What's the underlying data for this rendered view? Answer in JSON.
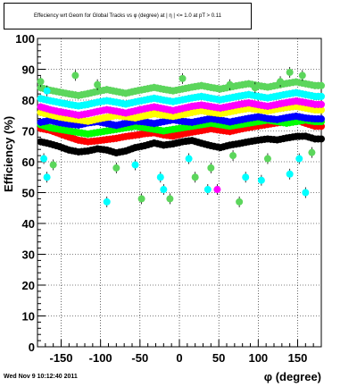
{
  "title": "Effeciency wrt Geom for Global Tracks vs φ (degree) at | η | <= 1.0 at pT > 0.11",
  "timestamp": "Wed Nov  9 10:12:40 2011",
  "chart_data": {
    "type": "scatter",
    "title": "Effeciency wrt Geom for Global Tracks vs φ (degree) at | η | <= 1.0 at pT > 0.11",
    "xlabel": "φ (degree)",
    "ylabel": "Efficiency (%)",
    "xlim": [
      -180,
      180
    ],
    "ylim": [
      0,
      100
    ],
    "xticks": [
      -150,
      -100,
      -50,
      0,
      50,
      100,
      150
    ],
    "yticks": [
      0,
      10,
      20,
      30,
      40,
      50,
      60,
      70,
      80,
      90,
      100
    ],
    "grid": true,
    "legend": "none",
    "x": [
      -176,
      -164,
      -152,
      -140,
      -128,
      -116,
      -104,
      -92,
      -80,
      -68,
      -56,
      -44,
      -32,
      -20,
      -8,
      4,
      16,
      28,
      40,
      52,
      64,
      76,
      88,
      100,
      112,
      124,
      136,
      148,
      160,
      172
    ],
    "series": [
      {
        "color": "#000000",
        "values": [
          66.5,
          65.8,
          64.9,
          63.8,
          63.2,
          63.5,
          64.2,
          63.8,
          62.9,
          63.5,
          64.6,
          65.2,
          66.1,
          65.4,
          65.8,
          66.5,
          66.9,
          66.0,
          65.2,
          64.6,
          65.4,
          65.9,
          66.5,
          67.0,
          67.4,
          67.1,
          67.7,
          68.2,
          68.3,
          67.4
        ]
      },
      {
        "color": "#ff0000",
        "values": [
          70.8,
          70.2,
          69.1,
          68.0,
          67.0,
          66.5,
          66.8,
          67.2,
          67.6,
          68.2,
          68.6,
          69.1,
          69.4,
          68.7,
          68.3,
          69.0,
          69.6,
          70.1,
          70.7,
          70.2,
          69.8,
          70.5,
          71.1,
          71.6,
          72.1,
          72.6,
          73.0,
          73.5,
          72.5,
          71.5
        ]
      },
      {
        "color": "#00ff00",
        "values": [
          72.0,
          71.0,
          70.5,
          70.0,
          69.5,
          69.0,
          69.5,
          70.0,
          70.5,
          71.0,
          71.5,
          71.0,
          70.5,
          70.0,
          70.5,
          71.0,
          71.5,
          72.0,
          72.5,
          72.0,
          71.5,
          72.0,
          72.5,
          73.0,
          73.5,
          73.0,
          72.5,
          73.0,
          73.5,
          73.0
        ]
      },
      {
        "color": "#0000ff",
        "values": [
          72.8,
          73.4,
          72.7,
          72.2,
          71.9,
          72.6,
          73.0,
          72.4,
          71.8,
          72.5,
          73.2,
          72.9,
          72.4,
          73.0,
          73.6,
          73.1,
          72.8,
          73.4,
          74.0,
          73.5,
          72.9,
          73.5,
          74.1,
          74.6,
          74.0,
          73.7,
          74.3,
          74.8,
          74.2,
          73.9
        ]
      },
      {
        "color": "#ffff00",
        "values": [
          76.0,
          75.2,
          74.5,
          74.0,
          73.6,
          73.1,
          73.8,
          74.4,
          75.0,
          74.6,
          74.2,
          74.9,
          75.6,
          75.1,
          74.7,
          75.3,
          76.0,
          76.6,
          76.0,
          75.6,
          76.2,
          76.8,
          77.3,
          76.9,
          76.5,
          77.1,
          77.6,
          78.0,
          77.4,
          76.8
        ]
      },
      {
        "color": "#ff00ff",
        "values": [
          77.8,
          76.9,
          76.2,
          75.7,
          75.1,
          75.6,
          76.3,
          76.9,
          76.4,
          75.8,
          76.5,
          77.2,
          77.8,
          77.2,
          76.6,
          77.3,
          78.0,
          78.4,
          77.9,
          77.4,
          78.0,
          78.6,
          79.1,
          78.5,
          78.0,
          78.6,
          79.2,
          79.7,
          79.2,
          78.6
        ]
      },
      {
        "color": "#00ffff",
        "values": [
          80.5,
          79.8,
          79.2,
          78.6,
          78.1,
          78.6,
          79.3,
          79.8,
          79.3,
          78.7,
          79.4,
          80.0,
          80.6,
          80.0,
          79.5,
          80.1,
          80.7,
          81.2,
          80.6,
          80.1,
          80.7,
          81.3,
          81.8,
          81.2,
          80.7,
          81.3,
          81.9,
          82.4,
          81.8,
          81.2
        ]
      },
      {
        "color": "#5cd65c",
        "values": [
          84.0,
          83.2,
          82.6,
          82.0,
          81.5,
          82.1,
          82.8,
          83.4,
          82.8,
          82.2,
          82.9,
          83.5,
          84.1,
          83.5,
          83.0,
          83.6,
          84.2,
          84.7,
          84.1,
          83.6,
          84.2,
          84.8,
          85.3,
          84.7,
          84.2,
          84.8,
          85.4,
          85.9,
          85.3,
          84.7
        ]
      }
    ],
    "outliers": {
      "x": [
        -172,
        -168,
        -160,
        -92,
        -80,
        -56,
        -48,
        -24,
        -20,
        -12,
        12,
        20,
        36,
        40,
        48,
        68,
        76,
        84,
        104,
        112,
        140,
        152,
        160,
        168,
        -176,
        -132,
        4,
        96,
        128,
        156,
        -168,
        -104,
        64,
        140
      ],
      "y": [
        61,
        55,
        59,
        47,
        58,
        59,
        48,
        55,
        51,
        48,
        61,
        55,
        51,
        58,
        51,
        62,
        47,
        55,
        54,
        61,
        56,
        61,
        50,
        63,
        86,
        88,
        87,
        84,
        86,
        88,
        83,
        85,
        85,
        89
      ],
      "colors": [
        "#00ffff",
        "#00ffff",
        "#5cd65c",
        "#00ffff",
        "#5cd65c",
        "#00ffff",
        "#5cd65c",
        "#00ffff",
        "#00ffff",
        "#5cd65c",
        "#00ffff",
        "#5cd65c",
        "#00ffff",
        "#5cd65c",
        "#ff00ff",
        "#5cd65c",
        "#5cd65c",
        "#00ffff",
        "#00ffff",
        "#5cd65c",
        "#00ffff",
        "#00ffff",
        "#00ffff",
        "#5cd65c",
        "#5cd65c",
        "#5cd65c",
        "#5cd65c",
        "#5cd65c",
        "#5cd65c",
        "#5cd65c",
        "#00ffff",
        "#5cd65c",
        "#5cd65c",
        "#5cd65c"
      ]
    }
  }
}
